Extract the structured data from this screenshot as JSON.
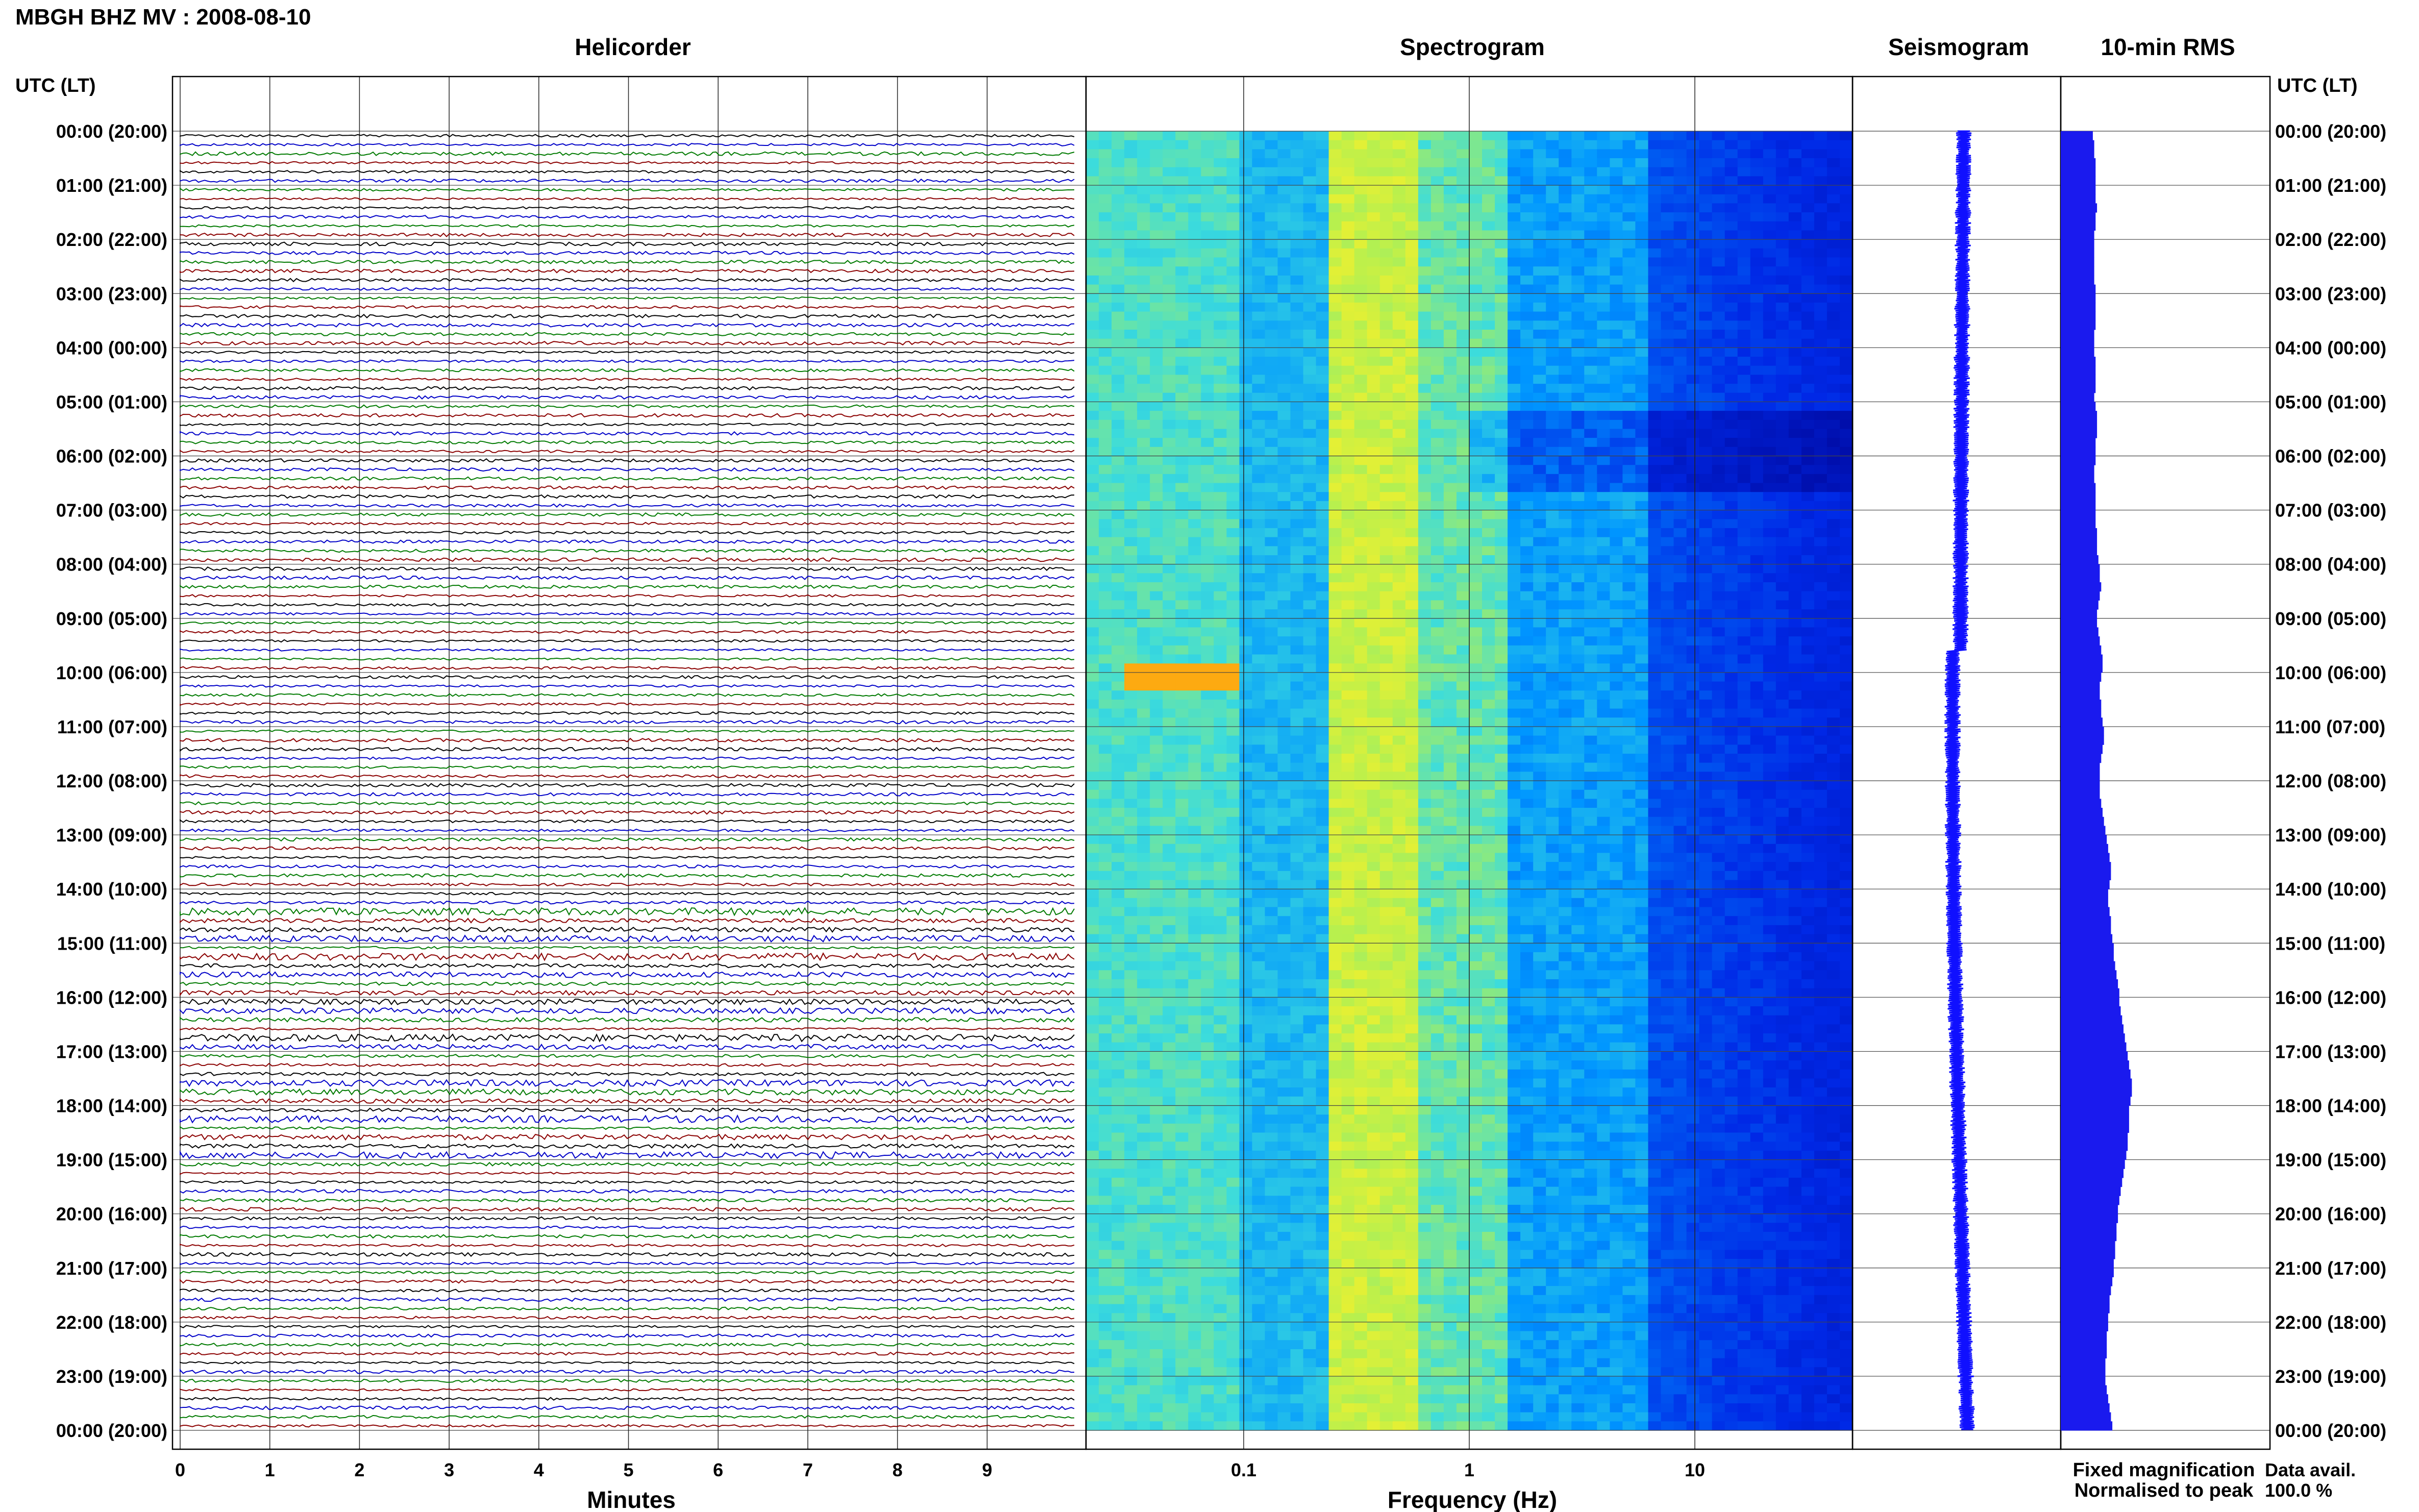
{
  "header": {
    "station_title": "MBGH BHZ MV : 2008-08-10"
  },
  "panels": {
    "helicorder_title": "Helicorder",
    "spectrogram_title": "Spectrogram",
    "seismogram_title": "Seismogram",
    "rms_title": "10-min RMS"
  },
  "axes": {
    "left_header": "UTC (LT)",
    "right_header": "UTC (LT)",
    "helicorder_xlabel": "Minutes",
    "spectrogram_xlabel": "Frequency (Hz)"
  },
  "legend": {
    "fixed_label": "Fixed magnification",
    "fixed_color": "#1a1aff",
    "normalised_label": "Normalised to peak",
    "normalised_color": "#ff1a1a"
  },
  "availability": {
    "label": "Data avail.",
    "value": "100.0 %"
  },
  "colors": {
    "trace_cycle": [
      "#000000",
      "#0000c8",
      "#007a00",
      "#8b0000"
    ],
    "seismogram": "#1010ff",
    "rms": "#1a1aee"
  },
  "chart_data": {
    "type": "helicorder-spectrogram",
    "time_labels": [
      "00:00 (20:00)",
      "01:00 (21:00)",
      "02:00 (22:00)",
      "03:00 (23:00)",
      "04:00 (00:00)",
      "05:00 (01:00)",
      "06:00 (02:00)",
      "07:00 (03:00)",
      "08:00 (04:00)",
      "09:00 (05:00)",
      "10:00 (06:00)",
      "11:00 (07:00)",
      "12:00 (08:00)",
      "13:00 (09:00)",
      "14:00 (10:00)",
      "15:00 (11:00)",
      "16:00 (12:00)",
      "17:00 (13:00)",
      "18:00 (14:00)",
      "19:00 (15:00)",
      "20:00 (16:00)",
      "21:00 (17:00)",
      "22:00 (18:00)",
      "23:00 (19:00)",
      "00:00 (20:00)"
    ],
    "minutes_ticks": [
      "0",
      "1",
      "2",
      "3",
      "4",
      "5",
      "6",
      "7",
      "8",
      "9"
    ],
    "minutes_range": [
      0,
      10
    ],
    "freq_tick_labels": [
      "0.1",
      "1",
      "10"
    ],
    "freq_ticks": [
      0.1,
      1,
      10
    ],
    "freq_range": [
      0.02,
      50
    ],
    "freq_scale": "log",
    "traces_per_hour": 6,
    "rms_10min": [
      2.3,
      2.4,
      2.4,
      2.5,
      2.5,
      2.5,
      2.5,
      2.5,
      2.6,
      2.5,
      2.5,
      2.4,
      2.4,
      2.4,
      2.4,
      2.4,
      2.4,
      2.5,
      2.5,
      2.5,
      2.5,
      2.5,
      2.4,
      2.4,
      2.4,
      2.5,
      2.5,
      2.5,
      2.5,
      2.4,
      2.5,
      2.6,
      2.6,
      2.6,
      2.5,
      2.5,
      2.5,
      2.4,
      2.4,
      2.5,
      2.5,
      2.5,
      2.5,
      2.5,
      2.6,
      2.6,
      2.6,
      2.7,
      2.8,
      2.8,
      2.9,
      2.8,
      2.7,
      2.6,
      2.6,
      2.7,
      2.8,
      2.9,
      3.0,
      3.0,
      2.9,
      2.8,
      2.8,
      2.9,
      2.9,
      3.0,
      3.1,
      3.1,
      3.0,
      2.9,
      2.8,
      2.8,
      2.8,
      2.8,
      2.9,
      3.0,
      3.1,
      3.2,
      3.3,
      3.4,
      3.5,
      3.6,
      3.6,
      3.5,
      3.4,
      3.4,
      3.5,
      3.6,
      3.6,
      3.7,
      3.8,
      3.8,
      3.9,
      4.0,
      4.1,
      4.2,
      4.2,
      4.3,
      4.4,
      4.5,
      4.6,
      4.7,
      4.8,
      4.9,
      5.0,
      5.1,
      5.1,
      5.0,
      4.9,
      4.9,
      4.9,
      4.8,
      4.8,
      4.7,
      4.6,
      4.5,
      4.4,
      4.3,
      4.2,
      4.1,
      4.1,
      4.0,
      4.0,
      3.9,
      3.9,
      3.8,
      3.8,
      3.7,
      3.6,
      3.5,
      3.5,
      3.4,
      3.4,
      3.3,
      3.3,
      3.3,
      3.2,
      3.2,
      3.2,
      3.3,
      3.4,
      3.5,
      3.6,
      3.7
    ]
  }
}
